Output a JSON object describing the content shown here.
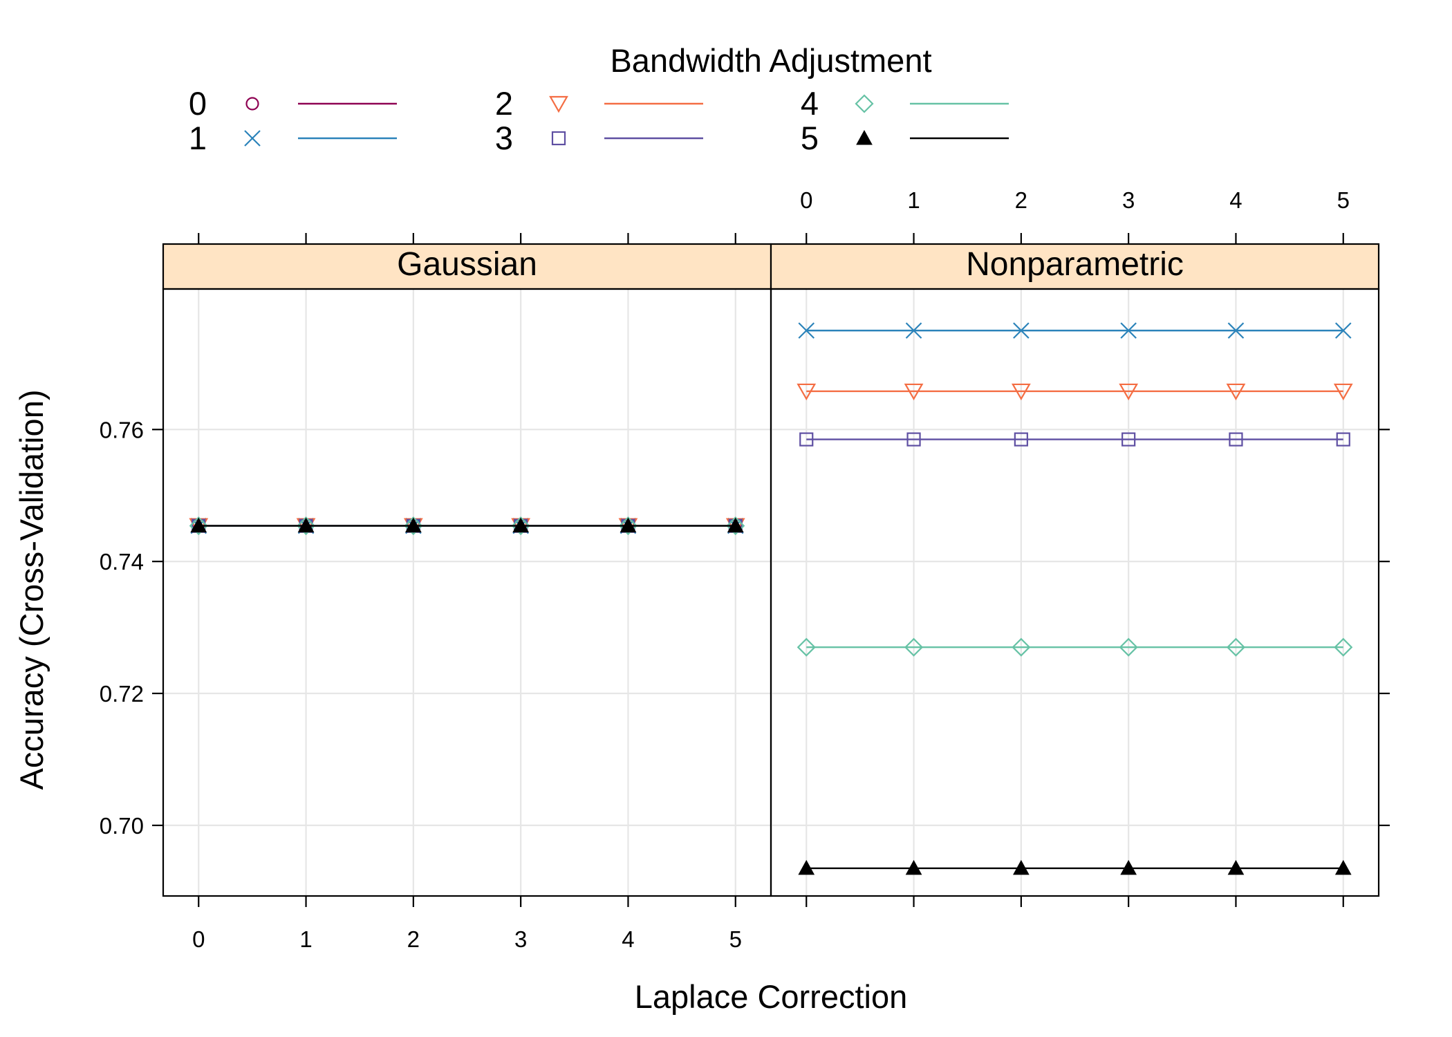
{
  "chart_data": {
    "type": "line",
    "legend": {
      "title": "Bandwidth Adjustment",
      "placement": "top",
      "entries": [
        "0",
        "1",
        "2",
        "3",
        "4",
        "5"
      ]
    },
    "xlabel": "Laplace Correction",
    "ylabel": "Accuracy (Cross-Validation)",
    "x": [
      0,
      1,
      2,
      3,
      4,
      5
    ],
    "x_tick_labels": [
      "0",
      "1",
      "2",
      "3",
      "4",
      "5"
    ],
    "y_ticks": [
      0.7,
      0.72,
      0.74,
      0.76
    ],
    "y_tick_labels": [
      "0.70",
      "0.72",
      "0.74",
      "0.76"
    ],
    "ylim": [
      0.6893,
      0.7813
    ],
    "xlim": [
      -0.33,
      5.33
    ],
    "grid": true,
    "series": [
      {
        "name": "0",
        "color": "#8e0152",
        "marker": "circle"
      },
      {
        "name": "1",
        "color": "#2b83ba",
        "marker": "x"
      },
      {
        "name": "2",
        "color": "#f46d43",
        "marker": "triangle-down"
      },
      {
        "name": "3",
        "color": "#5e4fa2",
        "marker": "square"
      },
      {
        "name": "4",
        "color": "#66c2a5",
        "marker": "diamond"
      },
      {
        "name": "5",
        "color": "#000000",
        "marker": "triangle-up-filled"
      }
    ],
    "panels": [
      {
        "strip": "Gaussian",
        "values": {
          "0": [
            0.7454,
            0.7454,
            0.7454,
            0.7454,
            0.7454,
            0.7454
          ],
          "1": [
            0.7454,
            0.7454,
            0.7454,
            0.7454,
            0.7454,
            0.7454
          ],
          "2": [
            0.7454,
            0.7454,
            0.7454,
            0.7454,
            0.7454,
            0.7454
          ],
          "3": [
            0.7454,
            0.7454,
            0.7454,
            0.7454,
            0.7454,
            0.7454
          ],
          "4": [
            0.7454,
            0.7454,
            0.7454,
            0.7454,
            0.7454,
            0.7454
          ],
          "5": [
            0.7454,
            0.7454,
            0.7454,
            0.7454,
            0.7454,
            0.7454
          ]
        }
      },
      {
        "strip": "Nonparametric",
        "values": {
          "1": [
            0.775,
            0.775,
            0.775,
            0.775,
            0.775,
            0.775
          ],
          "2": [
            0.7658,
            0.7658,
            0.7658,
            0.7658,
            0.7658,
            0.7658
          ],
          "3": [
            0.7585,
            0.7585,
            0.7585,
            0.7585,
            0.7585,
            0.7585
          ],
          "4": [
            0.727,
            0.727,
            0.727,
            0.727,
            0.727,
            0.727
          ],
          "5": [
            0.6935,
            0.6935,
            0.6935,
            0.6935,
            0.6935,
            0.6935
          ]
        }
      }
    ]
  }
}
